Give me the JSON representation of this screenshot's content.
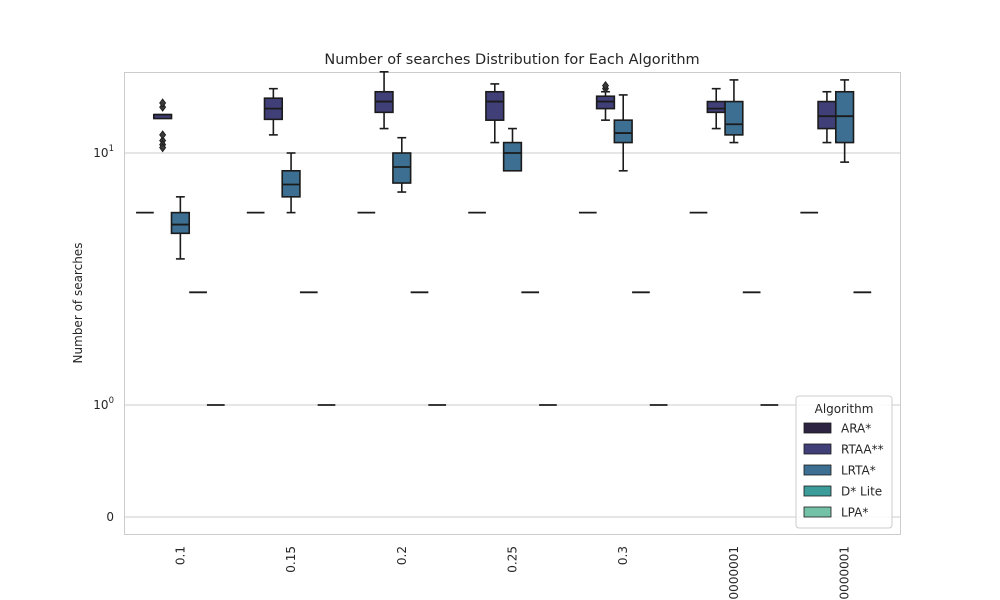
{
  "chart_data": {
    "type": "box",
    "title": "Number of searches Distribution for Each Algorithm",
    "xlabel": "",
    "ylabel": "Number of searches",
    "y_scale": "symlog",
    "grid": "horizontal",
    "categories": [
      "0.1",
      "0.15",
      "0.2",
      "0.25",
      "0.3",
      "0000001",
      "0000001"
    ],
    "y_ticks": [
      {
        "value": 0,
        "base": "0",
        "exp": ""
      },
      {
        "value": 1,
        "base": "10",
        "exp": "0"
      },
      {
        "value": 10,
        "base": "10",
        "exp": "1"
      }
    ],
    "legend": {
      "title": "Algorithm",
      "placement": "lower right"
    },
    "series": [
      {
        "name": "ARA*",
        "color": "#2d2442",
        "boxes": [
          {
            "min": 5.8,
            "q1": 5.8,
            "median": 5.8,
            "q3": 5.8,
            "max": 5.8,
            "fliers": []
          },
          {
            "min": 5.8,
            "q1": 5.8,
            "median": 5.8,
            "q3": 5.8,
            "max": 5.8,
            "fliers": []
          },
          {
            "min": 5.8,
            "q1": 5.8,
            "median": 5.8,
            "q3": 5.8,
            "max": 5.8,
            "fliers": []
          },
          {
            "min": 5.8,
            "q1": 5.8,
            "median": 5.8,
            "q3": 5.8,
            "max": 5.8,
            "fliers": []
          },
          {
            "min": 5.8,
            "q1": 5.8,
            "median": 5.8,
            "q3": 5.8,
            "max": 5.8,
            "fliers": []
          },
          {
            "min": 5.8,
            "q1": 5.8,
            "median": 5.8,
            "q3": 5.8,
            "max": 5.8,
            "fliers": []
          },
          {
            "min": 5.8,
            "q1": 5.8,
            "median": 5.8,
            "q3": 5.8,
            "max": 5.8,
            "fliers": []
          }
        ]
      },
      {
        "name": "RTAA**",
        "color": "#403f78",
        "boxes": [
          {
            "min": 13.7,
            "q1": 13.7,
            "median": 14.2,
            "q3": 14.2,
            "max": 14.2,
            "fliers": [
              15.2,
              15.8,
              11.2,
              11.8,
              10.8,
              10.5
            ]
          },
          {
            "min": 11.8,
            "q1": 13.6,
            "median": 15.0,
            "q3": 16.5,
            "max": 18.0,
            "fliers": []
          },
          {
            "min": 12.5,
            "q1": 14.5,
            "median": 16.0,
            "q3": 17.5,
            "max": 21.0,
            "fliers": []
          },
          {
            "min": 11.0,
            "q1": 13.5,
            "median": 16.0,
            "q3": 17.5,
            "max": 18.8,
            "fliers": []
          },
          {
            "min": 13.5,
            "q1": 15.0,
            "median": 16.0,
            "q3": 16.8,
            "max": 17.5,
            "fliers": [
              18.0,
              18.5
            ]
          },
          {
            "min": 12.5,
            "q1": 14.5,
            "median": 15.0,
            "q3": 16.0,
            "max": 18.0,
            "fliers": []
          },
          {
            "min": 11.0,
            "q1": 12.5,
            "median": 14.0,
            "q3": 16.0,
            "max": 17.5,
            "fliers": []
          }
        ]
      },
      {
        "name": "LRTA*",
        "color": "#3c6f91",
        "boxes": [
          {
            "min": 3.8,
            "q1": 4.8,
            "median": 5.2,
            "q3": 5.8,
            "max": 6.7,
            "fliers": []
          },
          {
            "min": 5.8,
            "q1": 6.7,
            "median": 7.5,
            "q3": 8.5,
            "max": 10.0,
            "fliers": []
          },
          {
            "min": 7.0,
            "q1": 7.6,
            "median": 8.8,
            "q3": 10.0,
            "max": 11.5,
            "fliers": []
          },
          {
            "min": 8.5,
            "q1": 8.5,
            "median": 10.0,
            "q3": 11.0,
            "max": 12.5,
            "fliers": []
          },
          {
            "min": 8.5,
            "q1": 11.0,
            "median": 12.0,
            "q3": 13.5,
            "max": 17.0,
            "fliers": []
          },
          {
            "min": 11.0,
            "q1": 11.8,
            "median": 13.0,
            "q3": 16.0,
            "max": 19.5,
            "fliers": []
          },
          {
            "min": 9.2,
            "q1": 11.0,
            "median": 14.0,
            "q3": 17.5,
            "max": 19.5,
            "fliers": []
          }
        ]
      },
      {
        "name": "D* Lite",
        "color": "#3b9c9a",
        "boxes": [
          {
            "min": 2.8,
            "q1": 2.8,
            "median": 2.8,
            "q3": 2.8,
            "max": 2.8,
            "fliers": []
          },
          {
            "min": 2.8,
            "q1": 2.8,
            "median": 2.8,
            "q3": 2.8,
            "max": 2.8,
            "fliers": []
          },
          {
            "min": 2.8,
            "q1": 2.8,
            "median": 2.8,
            "q3": 2.8,
            "max": 2.8,
            "fliers": []
          },
          {
            "min": 2.8,
            "q1": 2.8,
            "median": 2.8,
            "q3": 2.8,
            "max": 2.8,
            "fliers": []
          },
          {
            "min": 2.8,
            "q1": 2.8,
            "median": 2.8,
            "q3": 2.8,
            "max": 2.8,
            "fliers": []
          },
          {
            "min": 2.8,
            "q1": 2.8,
            "median": 2.8,
            "q3": 2.8,
            "max": 2.8,
            "fliers": []
          },
          {
            "min": 2.8,
            "q1": 2.8,
            "median": 2.8,
            "q3": 2.8,
            "max": 2.8,
            "fliers": []
          }
        ]
      },
      {
        "name": "LPA*",
        "color": "#73c2a8",
        "boxes": [
          {
            "min": 1.0,
            "q1": 1.0,
            "median": 1.0,
            "q3": 1.0,
            "max": 1.0,
            "fliers": []
          },
          {
            "min": 1.0,
            "q1": 1.0,
            "median": 1.0,
            "q3": 1.0,
            "max": 1.0,
            "fliers": []
          },
          {
            "min": 1.0,
            "q1": 1.0,
            "median": 1.0,
            "q3": 1.0,
            "max": 1.0,
            "fliers": []
          },
          {
            "min": 1.0,
            "q1": 1.0,
            "median": 1.0,
            "q3": 1.0,
            "max": 1.0,
            "fliers": []
          },
          {
            "min": 1.0,
            "q1": 1.0,
            "median": 1.0,
            "q3": 1.0,
            "max": 1.0,
            "fliers": []
          },
          {
            "min": 1.0,
            "q1": 1.0,
            "median": 1.0,
            "q3": 1.0,
            "max": 1.0,
            "fliers": []
          },
          null
        ]
      }
    ]
  }
}
